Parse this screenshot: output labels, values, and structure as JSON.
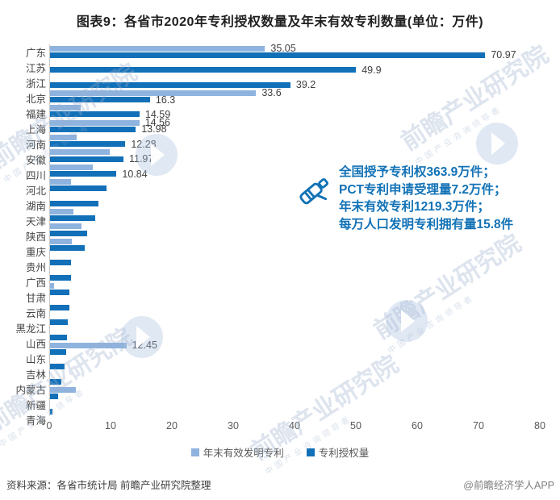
{
  "title": "图表9：各省市2020年专利授权数量及年末有效专利数量(单位：万件)",
  "chart_data": {
    "type": "bar",
    "orientation": "horizontal",
    "categories": [
      "广东",
      "江苏",
      "浙江",
      "北京",
      "福建",
      "上海",
      "河南",
      "安徽",
      "四川",
      "河北",
      "湖南",
      "天津",
      "陕西",
      "重庆",
      "贵州",
      "广西",
      "甘肃",
      "云南",
      "黑龙江",
      "山西",
      "山东",
      "吉林",
      "内蒙古",
      "新疆",
      "青海"
    ],
    "series": [
      {
        "name": "年末有效发明专利",
        "color": "#8FB3DF",
        "values": [
          35.05,
          null,
          null,
          33.6,
          5.0,
          14.56,
          4.4,
          9.8,
          7.0,
          3.4,
          null,
          3.8,
          5.1,
          3.6,
          null,
          null,
          0.7,
          null,
          null,
          null,
          12.45,
          null,
          null,
          4.2,
          null
        ],
        "labels": [
          "35.05",
          null,
          null,
          "33.6",
          null,
          "14.56",
          null,
          null,
          null,
          null,
          null,
          null,
          null,
          null,
          null,
          null,
          null,
          null,
          null,
          null,
          "12.45",
          null,
          null,
          null,
          null
        ]
      },
      {
        "name": "专利授权量",
        "color": "#1170B8",
        "values": [
          70.97,
          49.9,
          39.2,
          16.3,
          14.59,
          13.98,
          12.28,
          11.97,
          10.84,
          9.2,
          7.9,
          7.4,
          6.0,
          5.6,
          3.4,
          3.4,
          3.2,
          3.1,
          2.9,
          2.7,
          2.6,
          2.4,
          1.9,
          1.3,
          0.4
        ],
        "labels": [
          "70.97",
          "49.9",
          "39.2",
          "16.3",
          "14.59",
          "13.98",
          "12.28",
          "11.97",
          "10.84",
          null,
          null,
          null,
          null,
          null,
          null,
          null,
          null,
          null,
          null,
          null,
          null,
          null,
          null,
          null,
          null
        ]
      }
    ],
    "xlim": [
      0,
      80
    ],
    "xticks": [
      0,
      10,
      20,
      30,
      40,
      50,
      60,
      70,
      80
    ],
    "grid": false,
    "legend_position": "bottom"
  },
  "annotation": {
    "icon": "telescope-icon",
    "color": "#1272B6",
    "lines": [
      "全国授予专利权363.9万件；",
      "PCT专利申请受理量7.2万件；",
      "年末有效专利1219.3万件；",
      "每万人口发明专利拥有量15.8件"
    ]
  },
  "footer": {
    "source": "资料来源：各省市统计局 前瞻产业研究院整理",
    "credit": "@前瞻经济学人APP"
  },
  "watermark": {
    "text": "前瞻产业研究院",
    "subtext": "中国产业咨询领导者"
  }
}
